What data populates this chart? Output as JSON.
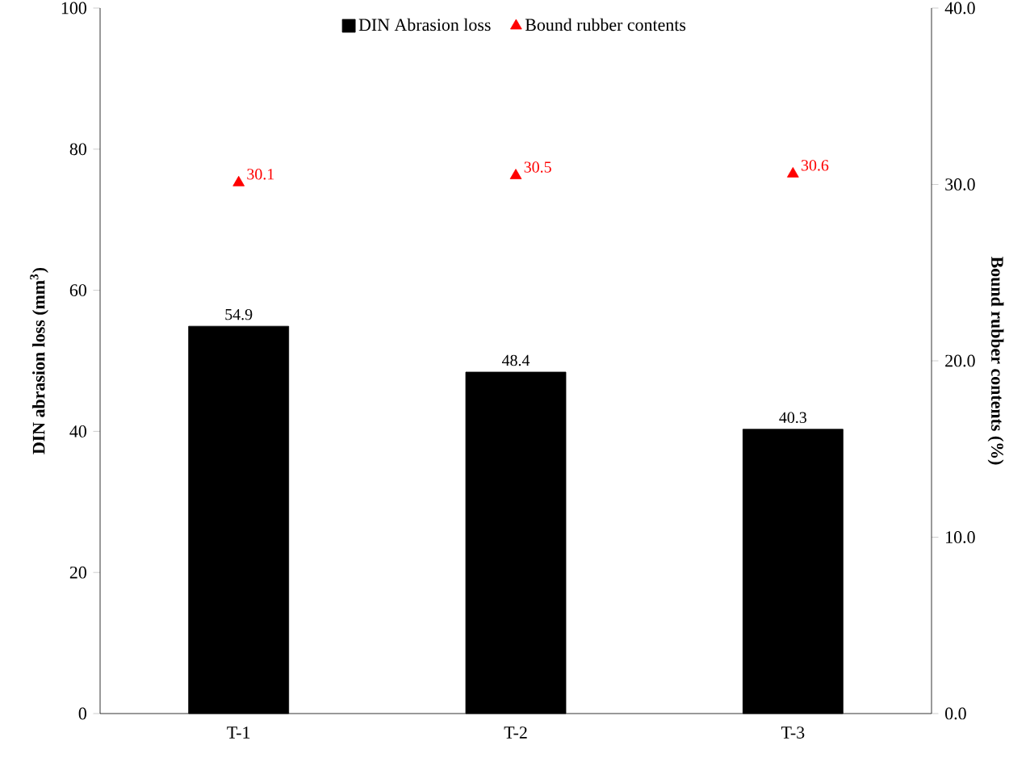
{
  "chart_data": {
    "type": "bar",
    "categories": [
      "T-1",
      "T-2",
      "T-3"
    ],
    "ylabel": "DIN abrasion loss (mm$^{3}$)",
    "y2label": "Bound rubber  contents (%)",
    "ylim": [
      0,
      100
    ],
    "yticks": [
      0,
      20,
      40,
      60,
      80,
      100
    ],
    "y2lim": [
      0,
      40
    ],
    "y2ticks": [
      {
        "value": 0,
        "label": "0.0"
      },
      {
        "value": 10,
        "label": "10.0"
      },
      {
        "value": 20,
        "label": "20.0"
      },
      {
        "value": 30,
        "label": "30.0"
      },
      {
        "value": 40,
        "label": "40.0"
      }
    ],
    "series": [
      {
        "name": "DIN Abrasion loss",
        "color": "#000000",
        "values": [
          54.9,
          48.4,
          40.3
        ]
      },
      {
        "name": "Bound rubber contents",
        "type": "scatter",
        "axis": "y2",
        "marker": "triangle",
        "color": "#ff0000",
        "values": [
          30.1,
          30.5,
          30.6
        ]
      }
    ],
    "data_labels": true,
    "legend": "top",
    "grid": false
  }
}
